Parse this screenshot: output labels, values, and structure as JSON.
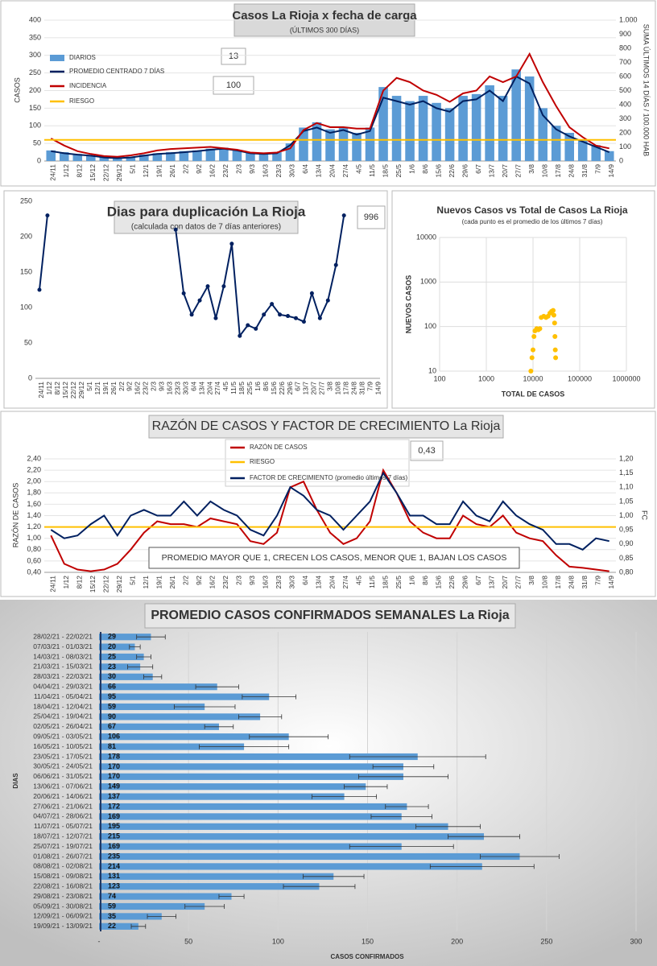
{
  "chart_data": [
    {
      "type": "combo",
      "title": "Casos La Rioja x fecha de carga",
      "subtitle": "(ÚLTIMOS 300 DÍAS)",
      "ylabel": "CASOS",
      "y2label": "SUMA ÚLTIMOS 14 DÍAS / 100.000 HAB",
      "annotations": [
        "13",
        "100"
      ],
      "legend": "upper left",
      "grid": true,
      "categories": [
        "24/11",
        "1/12",
        "8/12",
        "15/12",
        "22/12",
        "29/12",
        "5/1",
        "12/1",
        "19/1",
        "26/1",
        "2/2",
        "9/2",
        "16/2",
        "23/2",
        "2/3",
        "9/3",
        "16/3",
        "23/3",
        "30/3",
        "6/4",
        "13/4",
        "20/4",
        "27/4",
        "4/5",
        "11/5",
        "18/5",
        "25/5",
        "1/6",
        "8/6",
        "15/6",
        "22/6",
        "29/6",
        "6/7",
        "13/7",
        "20/7",
        "27/7",
        "3/8",
        "10/8",
        "17/8",
        "24/8",
        "31/8",
        "7/9",
        "14/9"
      ],
      "ylim": [
        0,
        400
      ],
      "yticks": [
        0,
        50,
        100,
        150,
        200,
        250,
        300,
        350,
        400
      ],
      "y2lim": [
        0,
        1000
      ],
      "y2ticks": [
        0,
        100,
        200,
        300,
        400,
        500,
        600,
        700,
        800,
        900,
        {
          "value": 1000,
          "label": "1.000"
        }
      ],
      "series": [
        {
          "name": "DIARIOS",
          "type": "bar",
          "color": "#5b9bd5",
          "values": [
            30,
            25,
            20,
            15,
            12,
            10,
            12,
            18,
            22,
            25,
            28,
            30,
            35,
            38,
            32,
            25,
            22,
            25,
            50,
            95,
            110,
            90,
            95,
            80,
            95,
            210,
            185,
            170,
            185,
            165,
            150,
            185,
            190,
            215,
            185,
            260,
            240,
            150,
            100,
            80,
            60,
            45,
            28
          ]
        },
        {
          "name": "PROMEDIO CENTRADO 7 DÍAS",
          "color": "#002060",
          "values": [
            28,
            22,
            18,
            15,
            10,
            8,
            10,
            15,
            20,
            22,
            25,
            28,
            32,
            35,
            30,
            22,
            20,
            22,
            45,
            85,
            95,
            80,
            88,
            75,
            85,
            180,
            170,
            160,
            170,
            150,
            140,
            170,
            175,
            200,
            170,
            240,
            220,
            130,
            90,
            70,
            55,
            40,
            25
          ]
        },
        {
          "name": "INCIDENCIA",
          "color": "#c00000",
          "axis": "y2",
          "values": [
            160,
            110,
            70,
            50,
            35,
            30,
            40,
            55,
            75,
            85,
            90,
            95,
            100,
            90,
            80,
            60,
            55,
            60,
            90,
            220,
            270,
            240,
            240,
            230,
            230,
            500,
            590,
            560,
            500,
            470,
            420,
            480,
            500,
            600,
            560,
            600,
            760,
            560,
            390,
            240,
            170,
            110,
            90
          ]
        },
        {
          "name": "RIESGO",
          "color": "#ffc000",
          "axis": "y2",
          "value": 150
        }
      ]
    },
    {
      "type": "line",
      "title": "Dias para duplicación La Rioja",
      "subtitle": "(calculada con datos de 7 días anteriores)",
      "annotations": [
        "996"
      ],
      "categories": [
        "24/11",
        "1/12",
        "8/12",
        "15/12",
        "22/12",
        "29/12",
        "5/1",
        "12/1",
        "19/1",
        "26/1",
        "2/2",
        "9/2",
        "16/2",
        "23/2",
        "2/3",
        "9/3",
        "16/3",
        "23/3",
        "30/3",
        "6/4",
        "13/4",
        "20/4",
        "27/4",
        "4/5",
        "11/5",
        "18/5",
        "25/5",
        "1/6",
        "8/6",
        "15/6",
        "22/6",
        "29/6",
        "6/7",
        "13/7",
        "20/7",
        "27/7",
        "3/8",
        "10/8",
        "17/8",
        "24/8",
        "31/8",
        "7/9",
        "14/9"
      ],
      "ylim": [
        0,
        250
      ],
      "yticks": [
        0,
        50,
        100,
        150,
        200,
        250
      ],
      "series": [
        {
          "name": null,
          "color": "#002060",
          "markers": true,
          "values": [
            125,
            230,
            null,
            null,
            null,
            null,
            null,
            null,
            null,
            null,
            null,
            null,
            null,
            null,
            null,
            null,
            null,
            210,
            120,
            90,
            110,
            130,
            85,
            130,
            190,
            60,
            75,
            70,
            90,
            105,
            90,
            88,
            85,
            80,
            120,
            85,
            110,
            160,
            230,
            null,
            null,
            null,
            null
          ]
        }
      ]
    },
    {
      "type": "scatter",
      "title": "Nuevos Casos vs Total de Casos La Rioja",
      "subtitle": "(cada punto es el promedio de los últimos 7 días)",
      "xlabel": "TOTAL DE CASOS",
      "ylabel": "NUEVOS CASOS",
      "logx": true,
      "logy": true,
      "color": "#ffc000",
      "xlim": [
        100,
        1000000
      ],
      "xticks": [
        100,
        1000,
        10000,
        100000,
        1000000
      ],
      "ylim": [
        10,
        10000
      ],
      "yticks": [
        10,
        100,
        1000,
        10000
      ],
      "x": [
        9000,
        9500,
        10000,
        10500,
        11000,
        12000,
        13000,
        14000,
        15000,
        17000,
        19000,
        21000,
        23000,
        25000,
        27000,
        28000,
        29000,
        29500,
        30000,
        30500
      ],
      "y": [
        10,
        20,
        30,
        60,
        80,
        90,
        85,
        90,
        160,
        170,
        160,
        170,
        200,
        220,
        230,
        180,
        120,
        60,
        30,
        20
      ]
    },
    {
      "type": "line",
      "title": "RAZÓN DE CASOS Y FACTOR DE CRECIMIENTO La Rioja",
      "ylabel": "RAZÓN DE CASOS",
      "y2label": "FC",
      "annotations": [
        "0,43",
        "PROMEDIO MAYOR QUE 1, CRECEN LOS CASOS, MENOR QUE 1, BAJAN LOS CASOS"
      ],
      "legend": "upper center",
      "grid": true,
      "categories": [
        "24/11",
        "1/12",
        "8/12",
        "15/12",
        "22/12",
        "29/12",
        "5/1",
        "12/1",
        "19/1",
        "26/1",
        "2/2",
        "9/2",
        "16/2",
        "23/2",
        "2/3",
        "9/3",
        "16/3",
        "23/3",
        "30/3",
        "6/4",
        "13/4",
        "20/4",
        "27/4",
        "4/5",
        "11/5",
        "18/5",
        "25/5",
        "1/6",
        "8/6",
        "15/6",
        "22/6",
        "29/6",
        "6/7",
        "13/7",
        "20/7",
        "27/7",
        "3/8",
        "10/8",
        "17/8",
        "24/8",
        "31/8",
        "7/9",
        "14/9"
      ],
      "ylim": [
        0.4,
        2.4
      ],
      "yticks": [
        {
          "value": 0.4,
          "label": "0,40"
        },
        {
          "value": 0.6,
          "label": "0,60"
        },
        {
          "value": 0.8,
          "label": "0,80"
        },
        {
          "value": 1.0,
          "label": "1,00"
        },
        {
          "value": 1.2,
          "label": "1,20"
        },
        {
          "value": 1.4,
          "label": "1,40"
        },
        {
          "value": 1.6,
          "label": "1,60"
        },
        {
          "value": 1.8,
          "label": "1,80"
        },
        {
          "value": 2.0,
          "label": "2,00"
        },
        {
          "value": 2.2,
          "label": "2,20"
        },
        {
          "value": 2.4,
          "label": "2,40"
        }
      ],
      "y2lim": [
        0.8,
        1.2
      ],
      "y2ticks": [
        {
          "value": 0.8,
          "label": "0,80"
        },
        {
          "value": 0.85,
          "label": "0,85"
        },
        {
          "value": 0.9,
          "label": "0,90"
        },
        {
          "value": 0.95,
          "label": "0,95"
        },
        {
          "value": 1.0,
          "label": "1,00"
        },
        {
          "value": 1.05,
          "label": "1,05"
        },
        {
          "value": 1.1,
          "label": "1,10"
        },
        {
          "value": 1.15,
          "label": "1,15"
        },
        {
          "value": 1.2,
          "label": "1,20"
        }
      ],
      "series": [
        {
          "name": "RAZÓN DE CASOS",
          "color": "#c00000",
          "values": [
            1.05,
            0.55,
            0.45,
            0.42,
            0.45,
            0.55,
            0.8,
            1.1,
            1.3,
            1.25,
            1.25,
            1.2,
            1.35,
            1.3,
            1.25,
            0.95,
            0.9,
            1.1,
            1.9,
            2.0,
            1.5,
            1.1,
            0.9,
            1.0,
            1.3,
            2.2,
            1.8,
            1.3,
            1.1,
            1.0,
            1.0,
            1.4,
            1.25,
            1.2,
            1.4,
            1.1,
            1.0,
            0.95,
            0.7,
            0.5,
            0.48,
            0.45,
            0.42
          ]
        },
        {
          "name": "RIESGO",
          "color": "#ffc000",
          "value": 1.2
        },
        {
          "name": "FACTOR DE CRECIMIENTO (promedio últimos 7 días)",
          "color": "#002060",
          "axis": "y2",
          "values": [
            0.95,
            0.92,
            0.93,
            0.97,
            1.0,
            0.93,
            1.0,
            1.02,
            1.0,
            1.0,
            1.05,
            1.0,
            1.05,
            1.02,
            1.0,
            0.95,
            0.93,
            1.0,
            1.1,
            1.07,
            1.02,
            1.0,
            0.95,
            1.0,
            1.05,
            1.15,
            1.08,
            1.0,
            1.0,
            0.97,
            0.97,
            1.05,
            1.0,
            0.98,
            1.05,
            1.0,
            0.97,
            0.95,
            0.9,
            0.9,
            0.88,
            0.92,
            0.91
          ]
        }
      ]
    },
    {
      "type": "bar",
      "orientation": "horizontal",
      "title": "PROMEDIO CASOS CONFIRMADOS SEMANALES La Rioja",
      "xlabel": "CASOS CONFIRMADOS",
      "ylabel": "DIAS",
      "color": "#5b9bd5",
      "grid": true,
      "xlim": [
        0,
        300
      ],
      "xticks": [
        {
          "value": 0,
          "label": "-"
        },
        50,
        100,
        150,
        200,
        250,
        300
      ],
      "categories": [
        "28/02/21 - 22/02/21",
        "07/03/21 - 01/03/21",
        "14/03/21 - 08/03/21",
        "21/03/21 - 15/03/21",
        "28/03/21 - 22/03/21",
        "04/04/21 - 29/03/21",
        "11/04/21 - 05/04/21",
        "18/04/21 - 12/04/21",
        "25/04/21 - 19/04/21",
        "02/05/21 - 26/04/21",
        "09/05/21 - 03/05/21",
        "16/05/21 - 10/05/21",
        "23/05/21 - 17/05/21",
        "30/05/21 - 24/05/21",
        "06/06/21 - 31/05/21",
        "13/06/21 - 07/06/21",
        "20/06/21 - 14/06/21",
        "27/06/21 - 21/06/21",
        "04/07/21 - 28/06/21",
        "11/07/21 - 05/07/21",
        "18/07/21 - 12/07/21",
        "25/07/21 - 19/07/21",
        "01/08/21 - 26/07/21",
        "08/08/21 - 02/08/21",
        "15/08/21 - 09/08/21",
        "22/08/21 - 16/08/21",
        "29/08/21 - 23/08/21",
        "05/09/21 - 30/08/21",
        "12/09/21 - 06/09/21",
        "19/09/21 - 13/09/21"
      ],
      "values": [
        29,
        20,
        25,
        23,
        30,
        66,
        95,
        59,
        90,
        67,
        106,
        81,
        178,
        170,
        170,
        149,
        137,
        172,
        169,
        195,
        215,
        169,
        235,
        214,
        131,
        123,
        74,
        59,
        35,
        22
      ],
      "errors": [
        8,
        3,
        4,
        7,
        5,
        12,
        15,
        17,
        12,
        8,
        22,
        25,
        38,
        17,
        25,
        12,
        18,
        12,
        17,
        18,
        20,
        29,
        22,
        29,
        17,
        20,
        7,
        11,
        8,
        4
      ]
    }
  ]
}
